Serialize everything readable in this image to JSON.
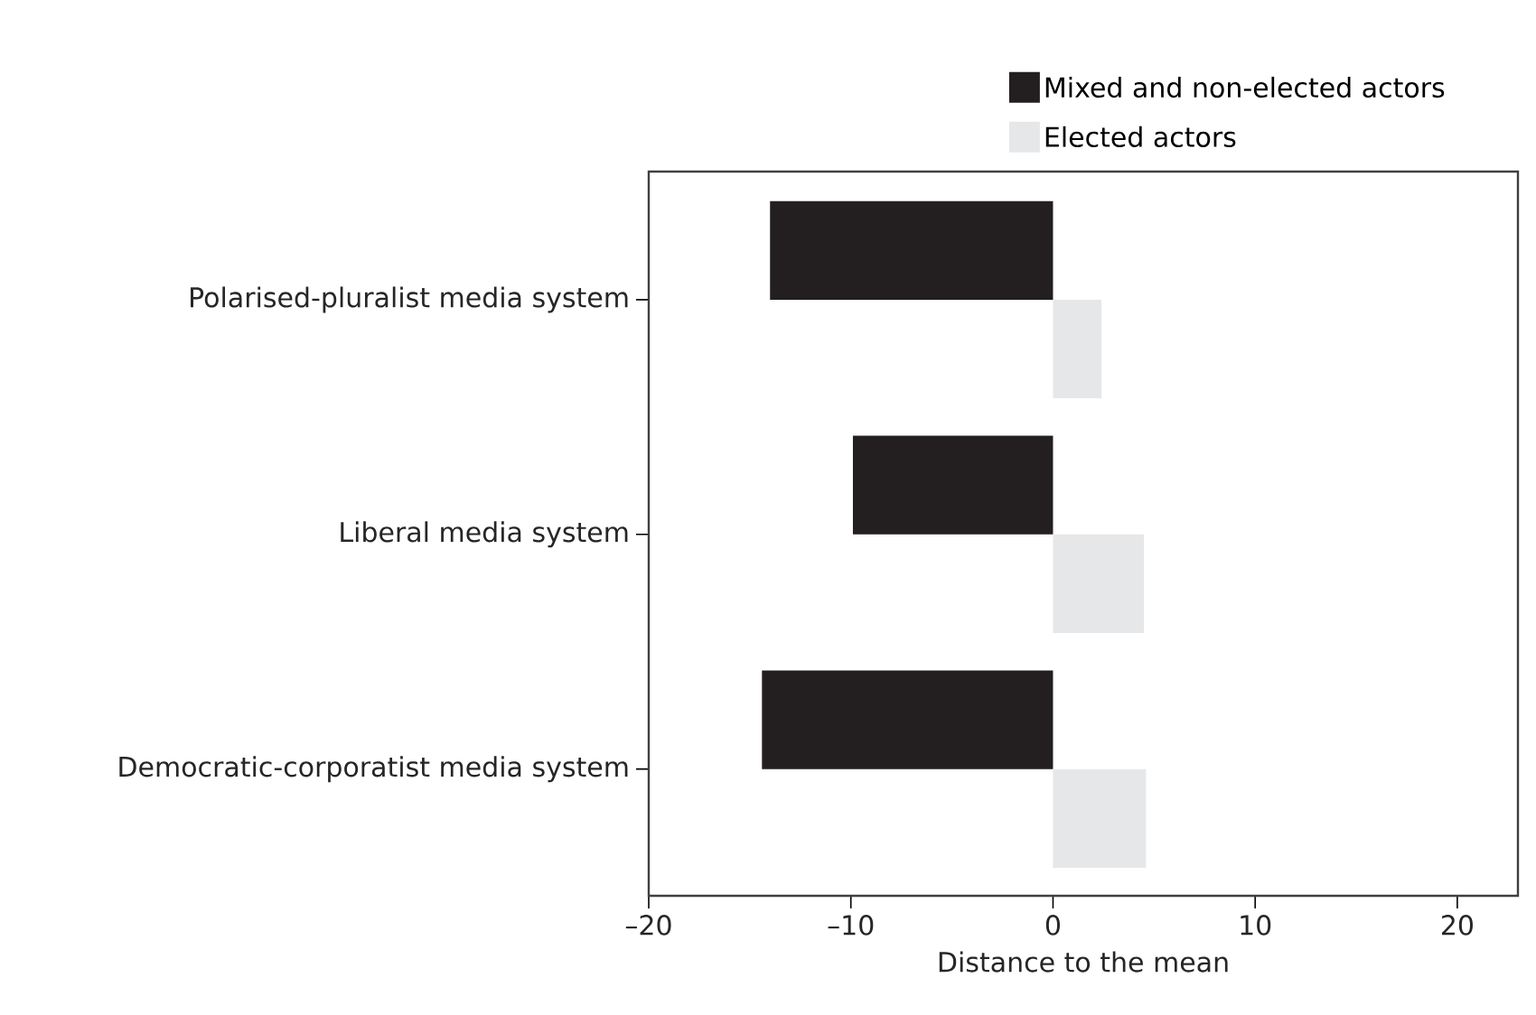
{
  "chart_data": {
    "type": "bar",
    "orientation": "horizontal",
    "xlabel": "Distance to the mean",
    "categories": [
      "Polarised-pluralist media system",
      "Liberal media system",
      "Democratic-corporatist media system"
    ],
    "series": [
      {
        "name": "Mixed and non-elected actors",
        "color": "#231f20",
        "values": [
          -14.0,
          -9.9,
          -14.4
        ]
      },
      {
        "name": "Elected actors",
        "color": "#e6e7e8",
        "values": [
          2.4,
          4.5,
          4.6
        ]
      }
    ],
    "xlim": [
      -20,
      23
    ],
    "xticks": [
      {
        "value": -20,
        "label": "–20"
      },
      {
        "value": -10,
        "label": "–10"
      },
      0,
      10,
      20
    ],
    "grid": false,
    "legend": "top"
  }
}
